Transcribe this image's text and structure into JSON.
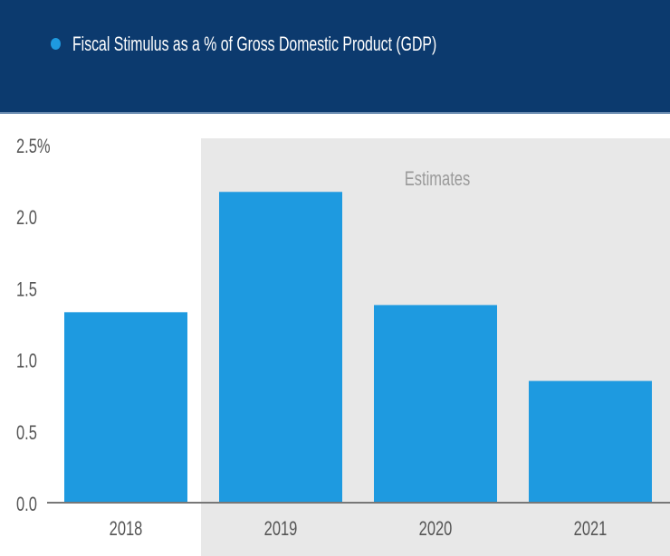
{
  "chart_data": {
    "type": "bar",
    "title": "Fiscal Stimulus as a % of Gross Domestic Product (GDP)",
    "categories": [
      "2018",
      "2019",
      "2020",
      "2021"
    ],
    "values": [
      1.33,
      2.17,
      1.38,
      0.85
    ],
    "ylim": [
      0,
      2.5
    ],
    "yticks": [
      "0.0",
      "0.5",
      "1.0",
      "1.5",
      "2.0",
      "2.5%"
    ],
    "ytick_values": [
      0,
      0.5,
      1.0,
      1.5,
      2.0,
      2.5
    ],
    "annotation": "Estimates",
    "shaded_categories": [
      "2019",
      "2020",
      "2021"
    ],
    "legend": "top-left",
    "colors": {
      "bar": "#1e9ae0",
      "header": "#0c3a6e",
      "shade": "#e8e8e8"
    }
  }
}
